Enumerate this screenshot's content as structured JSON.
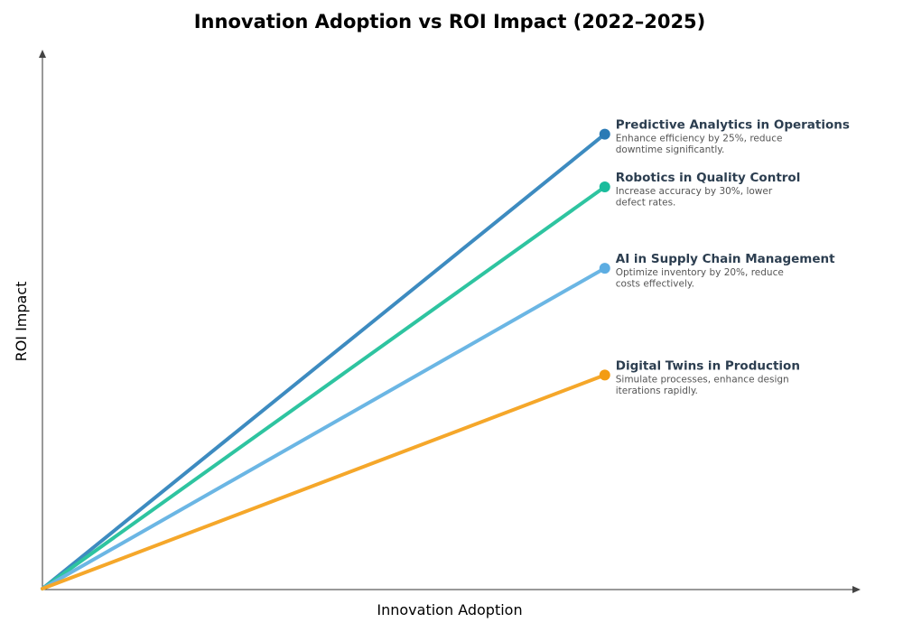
{
  "chart_data": {
    "type": "line",
    "title": "Innovation Adoption vs ROI Impact (2022–2025)",
    "xlabel": "Innovation Adoption",
    "ylabel": "ROI Impact",
    "xlim": [
      0,
      1.45
    ],
    "ylim": [
      0,
      1.18
    ],
    "grid": false,
    "ticks": false,
    "series": [
      {
        "name": "Predictive Analytics in Operations",
        "description": [
          "Enhance efficiency by 25%, reduce",
          "downtime significantly."
        ],
        "x": [
          0,
          1
        ],
        "y": [
          0,
          1.0
        ],
        "line_color": "#3d8bc0",
        "marker_color": "#2a7ab5"
      },
      {
        "name": "Robotics in Quality Control",
        "description": [
          "Increase accuracy by 30%, lower",
          "defect rates."
        ],
        "x": [
          0,
          1
        ],
        "y": [
          0,
          0.884
        ],
        "line_color": "#2ec4a0",
        "marker_color": "#1abc9c"
      },
      {
        "name": "AI in Supply Chain Management",
        "description": [
          "Optimize inventory by 20%, reduce",
          "costs effectively."
        ],
        "x": [
          0,
          1
        ],
        "y": [
          0,
          0.705
        ],
        "line_color": "#6bb6e4",
        "marker_color": "#5dade2"
      },
      {
        "name": "Digital Twins in Production",
        "description": [
          "Simulate processes, enhance design",
          "iterations rapidly."
        ],
        "x": [
          0,
          1
        ],
        "y": [
          0,
          0.47
        ],
        "line_color": "#f5a72a",
        "marker_color": "#f39c12"
      }
    ]
  }
}
